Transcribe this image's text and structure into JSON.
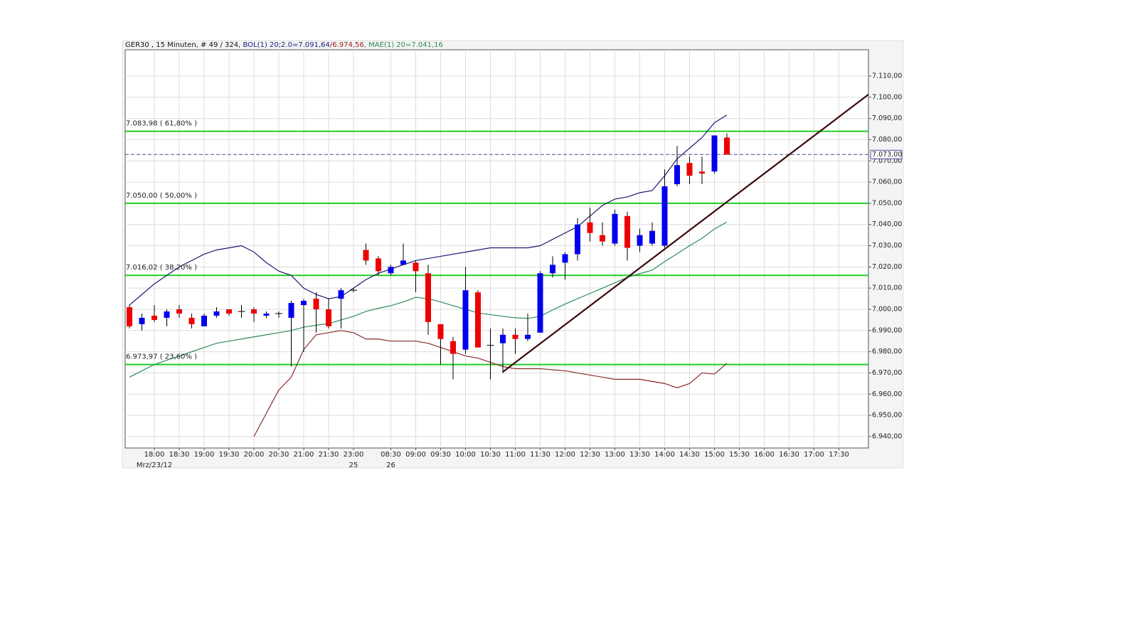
{
  "chart_data": {
    "type": "candlestick",
    "title_parts": [
      {
        "text": "GER30 , 15 Minuten, # 49 / 324, ",
        "color": "#111111"
      },
      {
        "text": "BOL(1) 20;2.0=7.091,64",
        "color": "#1a1a80"
      },
      {
        "text": "/6.974,56",
        "color": "#9b2020"
      },
      {
        "text": ", MAE(1) 20=7.041,16",
        "color": "#2e8b57"
      }
    ],
    "categories": [
      null,
      null,
      "18:00",
      null,
      "18:30",
      null,
      "19:00",
      null,
      "19:30",
      null,
      "20:00",
      null,
      "20:30",
      null,
      "21:00",
      null,
      "21:30",
      null,
      "23:00",
      null,
      null,
      "08:30",
      null,
      "09:00",
      null,
      "09:30",
      null,
      "10:00",
      null,
      "10:30",
      null,
      "11:00",
      null,
      "11:30",
      null,
      "12:00",
      null,
      "12:30",
      null,
      "13:00",
      null,
      "13:30",
      null,
      "14:00",
      null,
      "14:30",
      null,
      "15:00",
      null,
      "15:30",
      null,
      "16:00",
      null,
      "16:30",
      null,
      "17:00",
      null,
      "17:30",
      null,
      null
    ],
    "dates": [
      null,
      null,
      "Mrz/23/12",
      null,
      null,
      null,
      null,
      null,
      null,
      null,
      null,
      null,
      null,
      null,
      null,
      null,
      null,
      null,
      "25",
      null,
      null,
      "26",
      null,
      null,
      null,
      null,
      null,
      null,
      null,
      null,
      null,
      null,
      null,
      null,
      null,
      null,
      null,
      null,
      null,
      null,
      null,
      null,
      null,
      null,
      null,
      null,
      null,
      null,
      null,
      null,
      null,
      null,
      null,
      null,
      null,
      null,
      null,
      null,
      null,
      null
    ],
    "ohlc": {
      "up_color": "#0000ee",
      "down_color": "#ee0000",
      "wick_color": "#000000",
      "open": [
        7001,
        6993,
        6997,
        6996,
        7000,
        6996,
        6992,
        6997,
        7000,
        6999,
        7000,
        6997,
        6998,
        6996,
        7002,
        7005,
        7000,
        7005,
        7009,
        7028,
        7024,
        7017,
        7021,
        7022,
        7017,
        6993,
        6985,
        6981,
        7008,
        6983,
        6984,
        6988,
        6986,
        6989,
        7017,
        7022,
        7026,
        7041,
        7035,
        7031,
        7044,
        7030,
        7031,
        7030,
        7059,
        7069,
        7065,
        7065,
        7081,
        null,
        null,
        null,
        null,
        null,
        null,
        null,
        null,
        null,
        null,
        null
      ],
      "high": [
        7002,
        6998,
        7002,
        7000,
        7002,
        6998,
        6998,
        7001,
        7000,
        7002,
        7001,
        6999,
        6999,
        7004,
        7005,
        7008,
        7005,
        7010,
        7010,
        7031,
        7025,
        7021,
        7031,
        7023,
        7021,
        6993,
        6987,
        7020,
        7009,
        6991,
        6991,
        6991,
        6998,
        7018,
        7025,
        7027,
        7043,
        7048,
        7041,
        7047,
        7046,
        7038,
        7041,
        7066,
        7077,
        7072,
        7072,
        7082,
        7083,
        null,
        null,
        null,
        null,
        null,
        null,
        null,
        null,
        null,
        null,
        null
      ],
      "low": [
        6991,
        6990,
        6994,
        6992,
        6996,
        6991,
        6992,
        6996,
        6997,
        6996,
        6994,
        6996,
        6996,
        6973,
        6980,
        6989,
        6991,
        6991,
        7008,
        7021,
        7016,
        7016,
        7021,
        7008,
        6988,
        6974,
        6967,
        6979,
        6982,
        6967,
        6970,
        6979,
        6985,
        6989,
        7015,
        7014,
        7023,
        7032,
        7030,
        7030,
        7023,
        7027,
        7030,
        7029,
        7058,
        7059,
        7059,
        7064,
        7073,
        null,
        null,
        null,
        null,
        null,
        null,
        null,
        null,
        null,
        null,
        null
      ],
      "close": [
        6992,
        6996,
        6995,
        6999,
        6998,
        6993,
        6997,
        6999,
        6998,
        6999,
        6998,
        6998,
        6998,
        7003,
        7004,
        7000,
        6992,
        7009,
        7009,
        7023,
        7018,
        7020,
        7023,
        7018,
        6994,
        6986,
        6979,
        7009,
        6982,
        6983,
        6988,
        6986,
        6988,
        7017,
        7021,
        7026,
        7040,
        7036,
        7032,
        7045,
        7029,
        7035,
        7037,
        7058,
        7068,
        7063,
        7064,
        7082,
        7073,
        null,
        null,
        null,
        null,
        null,
        null,
        null,
        null,
        null,
        null,
        null
      ]
    },
    "series": [
      {
        "color": "#1a1a6e",
        "values": [
          7002,
          7007,
          7012,
          7016,
          7020,
          7023,
          7026,
          7028,
          7029,
          7030,
          7027,
          7022,
          7018,
          7016,
          7010,
          7007,
          7005,
          7006,
          7010,
          7014,
          7017,
          7019,
          7021,
          7023,
          7024,
          7025,
          7026,
          7027,
          7028,
          7029,
          7029,
          7029,
          7029,
          7030,
          7033,
          7036,
          7039,
          7044,
          7049,
          7052,
          7053,
          7055,
          7056,
          7063,
          7071,
          7076,
          7081,
          7088,
          7091.64,
          null,
          null,
          null,
          null,
          null,
          null,
          null,
          null,
          null,
          null,
          null
        ]
      },
      {
        "color": "#8b2a2a",
        "values": [
          null,
          null,
          null,
          null,
          null,
          null,
          null,
          null,
          null,
          null,
          6940,
          6951,
          6962,
          6968,
          6981,
          6988,
          6989,
          6990,
          6989,
          6986,
          6986,
          6985,
          6985,
          6985,
          6984,
          6982,
          6980,
          6978,
          6977,
          6975,
          6973,
          6972,
          6972,
          6972,
          6971.5,
          6971,
          6970,
          6969,
          6968,
          6967,
          6967,
          6967,
          6966,
          6965,
          6963,
          6965,
          6970,
          6969.5,
          6974.56,
          null,
          null,
          null,
          null,
          null,
          null,
          null,
          null,
          null,
          null,
          null
        ]
      },
      {
        "color": "#2e8b57",
        "values": [
          6968,
          6971,
          6974,
          6976,
          6978,
          6980,
          6982,
          6984,
          6985,
          6986,
          6987,
          6988,
          6989,
          6990,
          6991.6,
          6992.5,
          6993.3,
          6995,
          6996.7,
          6999,
          7000.5,
          7001.7,
          7003.5,
          7005.7,
          7005,
          7003.5,
          7001.7,
          7000,
          6998.3,
          6997.5,
          6996.7,
          6996,
          6995.7,
          6996.7,
          6999.7,
          7002.5,
          7005,
          7007.5,
          7010,
          7012.5,
          7015.1,
          7016.8,
          7018.5,
          7022.5,
          7026.2,
          7030,
          7033.5,
          7037.9,
          7041.16,
          null,
          null,
          null,
          null,
          null,
          null,
          null,
          null,
          null,
          null,
          null
        ]
      }
    ],
    "fib_color": "#22cc22",
    "fib_levels": [
      {
        "value": 7083.98,
        "label": "7.083,98 ( 61,80% )"
      },
      {
        "value": 7050.0,
        "label": "7.050,00 ( 50,00% )"
      },
      {
        "value": 7016.02,
        "label": "7.016,02 ( 38,20% )"
      },
      {
        "value": 6973.97,
        "label": "6.973,97 ( 23,60% )"
      }
    ],
    "current_price": {
      "value": 7073,
      "label": "7.073,00",
      "color": "#4a4a9a"
    },
    "trendline": {
      "color": "#3a0808",
      "x": [
        30,
        59.37
      ],
      "values": [
        6970.5,
        7101.3
      ]
    },
    "ylim": [
      6934.6,
      7122.4
    ],
    "yticks": [
      {
        "value": 6940,
        "label": "6.940,00"
      },
      {
        "value": 6950,
        "label": "6.950,00"
      },
      {
        "value": 6960,
        "label": "6.960,00"
      },
      {
        "value": 6970,
        "label": "6.970,00"
      },
      {
        "value": 6980,
        "label": "6.980,00"
      },
      {
        "value": 6990,
        "label": "6.990,00"
      },
      {
        "value": 7000,
        "label": "7.000,00"
      },
      {
        "value": 7010,
        "label": "7.010,00"
      },
      {
        "value": 7020,
        "label": "7.020,00"
      },
      {
        "value": 7030,
        "label": "7.030,00"
      },
      {
        "value": 7040,
        "label": "7.040,00"
      },
      {
        "value": 7050,
        "label": "7.050,00"
      },
      {
        "value": 7060,
        "label": "7.060,00"
      },
      {
        "value": 7070,
        "label": "7.070,00"
      },
      {
        "value": 7080,
        "label": "7.080,00"
      },
      {
        "value": 7090,
        "label": "7.090,00"
      },
      {
        "value": 7100,
        "label": "7.100,00"
      },
      {
        "value": 7110,
        "label": "7.110,00"
      }
    ],
    "grid": true
  }
}
